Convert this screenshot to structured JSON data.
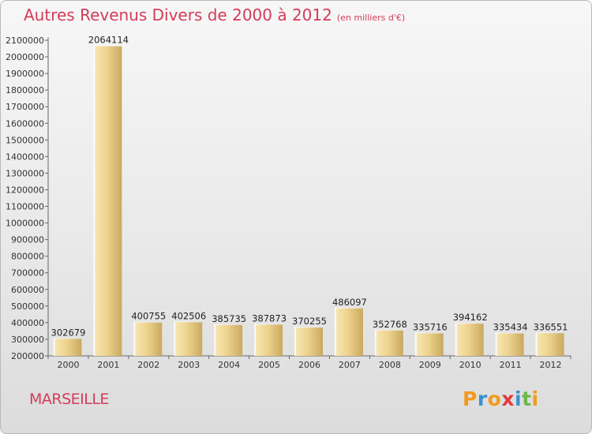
{
  "title": "Autres Revenus Divers de 2000 à 2012",
  "subtitle": "(en milliers d'€)",
  "city": "MARSEILLE",
  "logo": {
    "letters": [
      "P",
      "r",
      "o",
      "x",
      "i",
      "t",
      "i"
    ],
    "colors": [
      "#f39a1c",
      "#3c8fd3",
      "#f39a1c",
      "#e23c3c",
      "#3c8fd3",
      "#6bb84a",
      "#f39a1c"
    ]
  },
  "colors": {
    "title": "#d43c5a",
    "bar_light": "#f5dea0",
    "bar_dark": "#cfb068",
    "axis": "#555555"
  },
  "chart_data": {
    "type": "bar",
    "categories": [
      "2000",
      "2001",
      "2002",
      "2003",
      "2004",
      "2005",
      "2006",
      "2007",
      "2008",
      "2009",
      "2010",
      "2011",
      "2012"
    ],
    "values": [
      302679,
      2064114,
      400755,
      402506,
      385735,
      387873,
      370255,
      486097,
      352768,
      335716,
      394162,
      335434,
      336551
    ],
    "data_labels": [
      "302679",
      "2064114",
      "400755",
      "402506",
      "385735",
      "387873",
      "370255",
      "486097",
      "352768",
      "335716",
      "394162",
      "335434",
      "336551"
    ],
    "ylim": [
      200000,
      2100000
    ],
    "yticks": [
      200000,
      300000,
      400000,
      500000,
      600000,
      700000,
      800000,
      900000,
      1000000,
      1100000,
      1200000,
      1300000,
      1400000,
      1500000,
      1600000,
      1700000,
      1800000,
      1900000,
      2000000,
      2100000
    ],
    "ytick_labels": [
      "200000",
      "300000",
      "400000",
      "500000",
      "600000",
      "700000",
      "800000",
      "900000",
      "1000000",
      "1100000",
      "1200000",
      "1300000",
      "1400000",
      "1500000",
      "1600000",
      "1700000",
      "1800000",
      "1900000",
      "2000000",
      "2100000"
    ],
    "grid": false,
    "legend": "none"
  }
}
